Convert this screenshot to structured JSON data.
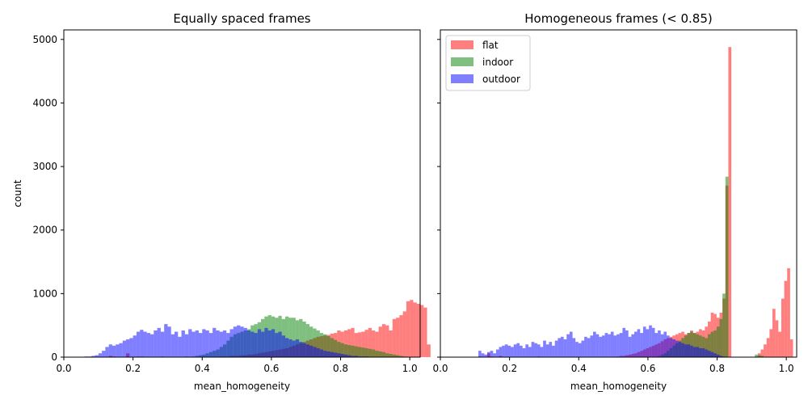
{
  "figure": {
    "colors": {
      "flat": "#ff0000",
      "indoor": "#008000",
      "outdoor": "#0000ff"
    },
    "alpha": 0.5,
    "shared_y_label": "count"
  },
  "chart_data": [
    {
      "type": "histogram",
      "title": "Equally spaced frames",
      "xlabel": "mean_homogeneity",
      "ylabel": "count",
      "xlim": [
        0.0,
        1.03
      ],
      "ylim": [
        0,
        5150
      ],
      "xticks": [
        "0.0",
        "0.2",
        "0.4",
        "0.6",
        "0.8",
        "1.0"
      ],
      "yticks": [
        "0",
        "1000",
        "2000",
        "3000",
        "4000",
        "5000"
      ],
      "legend": null,
      "bin_width": 0.01,
      "series": [
        {
          "name": "flat",
          "x_start": 0.1,
          "values": [
            0,
            0,
            0,
            20,
            10,
            0,
            0,
            0,
            60,
            0,
            0,
            10,
            10,
            0,
            0,
            0,
            0,
            0,
            10,
            0,
            0,
            0,
            0,
            0,
            0,
            10,
            0,
            0,
            0,
            0,
            0,
            0,
            0,
            0,
            0,
            10,
            10,
            10,
            20,
            20,
            20,
            30,
            30,
            40,
            40,
            50,
            60,
            70,
            80,
            90,
            100,
            110,
            120,
            130,
            140,
            160,
            180,
            200,
            220,
            240,
            260,
            280,
            300,
            320,
            330,
            340,
            350,
            370,
            380,
            420,
            400,
            420,
            440,
            460,
            380,
            390,
            400,
            430,
            460,
            420,
            400,
            480,
            520,
            500,
            420,
            600,
            620,
            660,
            720,
            880,
            900,
            860,
            840,
            820,
            780,
            200
          ]
        },
        {
          "name": "indoor",
          "x_start": 0.1,
          "values": [
            0,
            0,
            0,
            0,
            0,
            0,
            0,
            0,
            10,
            0,
            0,
            0,
            0,
            0,
            0,
            0,
            0,
            0,
            0,
            0,
            0,
            0,
            0,
            0,
            0,
            0,
            0,
            10,
            20,
            30,
            40,
            60,
            80,
            100,
            120,
            160,
            200,
            260,
            320,
            360,
            380,
            400,
            420,
            440,
            500,
            520,
            550,
            600,
            640,
            660,
            640,
            620,
            650,
            600,
            640,
            620,
            620,
            580,
            600,
            560,
            520,
            480,
            450,
            420,
            380,
            360,
            330,
            300,
            270,
            240,
            220,
            200,
            190,
            180,
            170,
            160,
            150,
            140,
            130,
            120,
            100,
            90,
            80,
            60,
            50,
            40,
            30,
            20,
            10,
            0,
            0,
            0,
            0,
            0,
            0,
            0
          ]
        },
        {
          "name": "outdoor",
          "x_start": 0.06,
          "values": [
            10,
            10,
            20,
            30,
            60,
            100,
            160,
            200,
            180,
            200,
            220,
            260,
            280,
            300,
            340,
            400,
            430,
            400,
            380,
            360,
            420,
            460,
            400,
            520,
            480,
            360,
            400,
            320,
            420,
            360,
            440,
            400,
            420,
            380,
            440,
            420,
            380,
            460,
            420,
            400,
            420,
            380,
            440,
            480,
            500,
            480,
            460,
            420,
            400,
            380,
            440,
            400,
            460,
            420,
            440,
            380,
            400,
            340,
            300,
            280,
            260,
            280,
            240,
            220,
            200,
            180,
            160,
            140,
            120,
            100,
            90,
            80,
            70,
            60,
            50,
            40,
            30,
            20,
            20,
            10,
            10,
            10,
            0,
            0,
            0,
            0,
            0,
            0,
            0,
            0,
            0,
            0
          ]
        }
      ]
    },
    {
      "type": "histogram",
      "title": "Homogeneous frames (< 0.85)",
      "xlabel": "mean_homogeneity",
      "ylabel": "",
      "xlim": [
        0.0,
        1.03
      ],
      "ylim": [
        0,
        5150
      ],
      "xticks": [
        "0.0",
        "0.2",
        "0.4",
        "0.6",
        "0.8",
        "1.0"
      ],
      "yticks": [],
      "legend": "upper-left",
      "bin_width": 0.0085,
      "series": [
        {
          "name": "flat",
          "x_start": 0.11,
          "values": [
            10,
            0,
            0,
            60,
            10,
            0,
            0,
            20,
            0,
            0,
            0,
            0,
            0,
            0,
            0,
            0,
            0,
            0,
            0,
            0,
            10,
            0,
            0,
            0,
            0,
            0,
            0,
            0,
            0,
            0,
            0,
            0,
            0,
            0,
            0,
            0,
            0,
            0,
            0,
            0,
            0,
            0,
            0,
            0,
            0,
            0,
            0,
            10,
            20,
            20,
            30,
            40,
            50,
            60,
            80,
            100,
            120,
            140,
            160,
            180,
            200,
            220,
            250,
            280,
            300,
            320,
            340,
            360,
            380,
            400,
            360,
            380,
            420,
            380,
            400,
            440,
            420,
            480,
            560,
            700,
            680,
            620,
            700,
            920,
            2700,
            4880,
            0,
            0,
            0,
            0,
            0,
            0,
            0,
            0,
            10,
            60,
            120,
            200,
            300,
            440,
            760,
            580,
            400,
            920,
            1200,
            1400,
            280
          ]
        },
        {
          "name": "indoor",
          "x_start": 0.11,
          "values": [
            0,
            0,
            0,
            0,
            0,
            0,
            0,
            0,
            0,
            0,
            0,
            0,
            0,
            0,
            0,
            0,
            0,
            0,
            0,
            0,
            0,
            0,
            0,
            0,
            0,
            0,
            0,
            0,
            0,
            0,
            0,
            0,
            0,
            0,
            0,
            0,
            0,
            0,
            0,
            0,
            0,
            0,
            0,
            0,
            0,
            0,
            0,
            0,
            0,
            0,
            0,
            0,
            0,
            0,
            0,
            0,
            0,
            0,
            0,
            0,
            0,
            20,
            40,
            60,
            100,
            140,
            180,
            220,
            260,
            300,
            340,
            380,
            400,
            380,
            360,
            340,
            320,
            300,
            360,
            400,
            420,
            480,
            600,
            1000,
            2840,
            0,
            0,
            0,
            0,
            0,
            0,
            0,
            0,
            0,
            40,
            30,
            20,
            0,
            0,
            0,
            0,
            0,
            0,
            0,
            0,
            0,
            0
          ]
        },
        {
          "name": "outdoor",
          "x_start": 0.11,
          "values": [
            100,
            60,
            40,
            80,
            100,
            60,
            120,
            160,
            180,
            200,
            180,
            160,
            200,
            220,
            180,
            140,
            200,
            160,
            240,
            220,
            200,
            160,
            260,
            200,
            240,
            180,
            260,
            300,
            320,
            280,
            360,
            400,
            300,
            240,
            220,
            260,
            320,
            300,
            340,
            400,
            360,
            320,
            340,
            380,
            360,
            400,
            340,
            360,
            380,
            460,
            420,
            320,
            360,
            400,
            440,
            380,
            480,
            440,
            500,
            460,
            380,
            420,
            360,
            400,
            340,
            300,
            280,
            260,
            240,
            220,
            200,
            200,
            180,
            160,
            160,
            140,
            140,
            120,
            100,
            80,
            60,
            40,
            20,
            10,
            0,
            0,
            0,
            0,
            0,
            0,
            0,
            0,
            0,
            0,
            0,
            0,
            0,
            0,
            0,
            0,
            0,
            0,
            0,
            0,
            0,
            0,
            0
          ]
        }
      ]
    }
  ]
}
